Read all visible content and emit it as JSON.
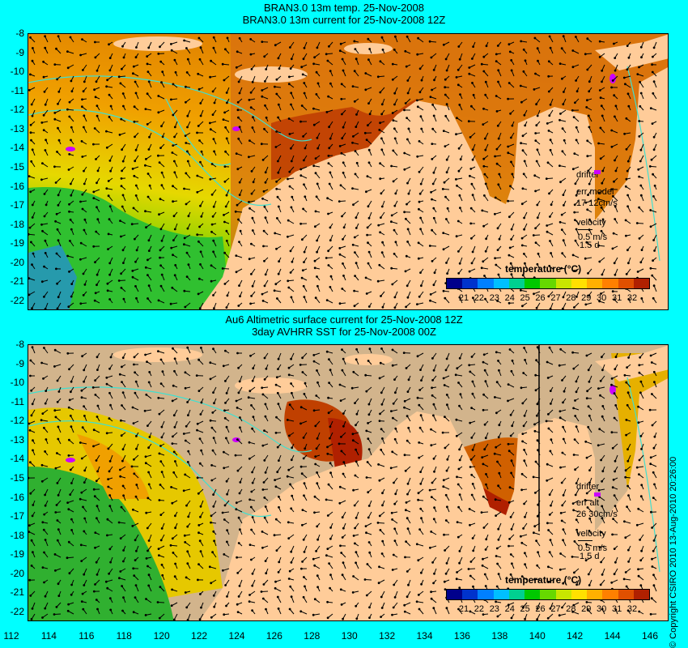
{
  "top_panel": {
    "title_line1": "BRAN3.0 13m temp. 25-Nov-2008",
    "title_line2": "BRAN3.0 13m current for 25-Nov-2008 12Z",
    "legend": {
      "drifter_label": "drifter",
      "error_label": "err model",
      "error_value": "17 12cm/s",
      "velocity_label": "velocity",
      "velocity_value": "0.5 m/s",
      "velocity_days": "1.5 d"
    },
    "colorbar_title": "temperature (°C)"
  },
  "bottom_panel": {
    "title_line1": "Au6 Altimetric surface current for 25-Nov-2008 12Z",
    "title_line2": "3day AVHRR SST for 25-Nov-2008 00Z",
    "legend": {
      "drifter_label": "drifter",
      "error_label": "err alt",
      "error_value": "26 30cm/s",
      "velocity_label": "velocity",
      "velocity_value": "0.5 m/s",
      "velocity_days": "1.5 d"
    },
    "colorbar_title": "temperature (°C)"
  },
  "colorbar_ticks": [
    "21",
    "22",
    "23",
    "24",
    "25",
    "26",
    "27",
    "28",
    "29",
    "30",
    "31",
    "32"
  ],
  "colorbar_colors": [
    "#00008b",
    "#0033cc",
    "#0080ff",
    "#00bfff",
    "#00d090",
    "#00c800",
    "#66d800",
    "#c8e600",
    "#ffe000",
    "#ffb000",
    "#ff8000",
    "#e05000",
    "#b02000"
  ],
  "y_axis_labels": [
    "-8",
    "-9",
    "-10",
    "-11",
    "-12",
    "-13",
    "-14",
    "-15",
    "-16",
    "-17",
    "-18",
    "-19",
    "-20",
    "-21",
    "-22"
  ],
  "x_axis_labels": [
    "112",
    "114",
    "116",
    "118",
    "120",
    "122",
    "124",
    "126",
    "128",
    "130",
    "132",
    "134",
    "136",
    "138",
    "140",
    "142",
    "144",
    "146"
  ],
  "copyright": "© Copyright CSIRO 2010   13-Aug-2010 20:26:00",
  "colors": {
    "background": "#00ffff",
    "land": "#ffcc99",
    "no_data": "#d2b48c",
    "contour": "#40e0d0",
    "drifter": "#cc00ff"
  }
}
